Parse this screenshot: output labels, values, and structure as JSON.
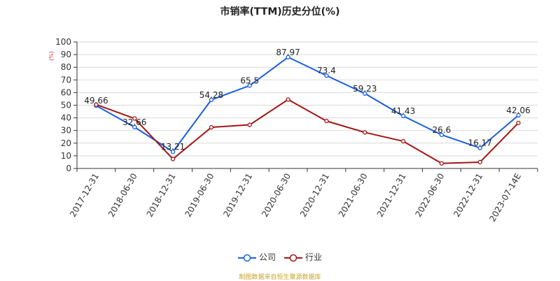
{
  "chart_data": {
    "type": "line",
    "title": "市销率(TTM)历史分位(%)",
    "ylabel": "(%)",
    "ylim": [
      0,
      100
    ],
    "yticks": [
      0,
      10,
      20,
      30,
      40,
      50,
      60,
      70,
      80,
      90,
      100
    ],
    "categories": [
      "2017-12-31",
      "2018-06-30",
      "2018-12-31",
      "2019-06-30",
      "2019-12-31",
      "2020-06-30",
      "2020-12-31",
      "2021-06-30",
      "2021-12-31",
      "2022-06-30",
      "2022-12-31",
      "2023-07-14E"
    ],
    "grid": true,
    "legend_position": "bottom",
    "series": [
      {
        "name": "公司",
        "color": "#1a5ee6",
        "show_labels": true,
        "values": [
          49.66,
          32.66,
          13.21,
          54.28,
          65.5,
          87.97,
          73.4,
          59.23,
          41.43,
          26.6,
          16.17,
          42.06
        ]
      },
      {
        "name": "行业",
        "color": "#a31616",
        "show_labels": false,
        "values": [
          50.5,
          39.5,
          7.5,
          32.5,
          34.5,
          54.5,
          37.5,
          28.5,
          21.5,
          4.0,
          5.0,
          36.0
        ]
      }
    ],
    "source": "制图数据来自恒生聚源数据库"
  }
}
